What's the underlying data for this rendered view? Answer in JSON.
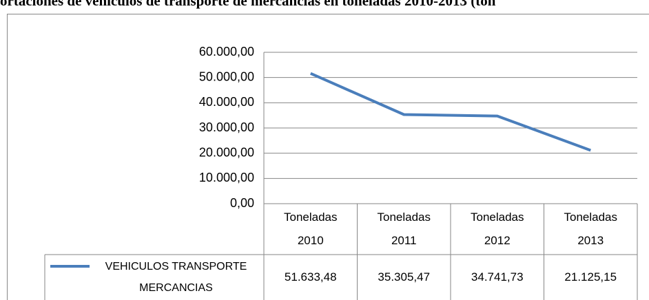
{
  "chart_data": {
    "type": "line",
    "title": "ortaciones de vehiculos de transporte de mercancias en toneladas 2010-2013 (ton",
    "categories": [
      "Toneladas 2010",
      "Toneladas 2011",
      "Toneladas 2012",
      "Toneladas 2013"
    ],
    "series": [
      {
        "name": "VEHICULOS TRANSPORTE MERCANCIAS",
        "color": "#4a7ebb",
        "values": [
          51633.48,
          35305.47,
          34741.73,
          21125.15
        ],
        "value_labels": [
          "51.633,48",
          "35.305,47",
          "34.741,73",
          "21.125,15"
        ]
      }
    ],
    "ylim": [
      0,
      60000
    ],
    "yticks": [
      {
        "value": 0,
        "label": "0,00"
      },
      {
        "value": 10000,
        "label": "10.000,00"
      },
      {
        "value": 20000,
        "label": "20.000,00"
      },
      {
        "value": 30000,
        "label": "30.000,00"
      },
      {
        "value": 40000,
        "label": "40.000,00"
      },
      {
        "value": 50000,
        "label": "50.000,00"
      },
      {
        "value": 60000,
        "label": "60.000,00"
      }
    ],
    "grid": true
  }
}
